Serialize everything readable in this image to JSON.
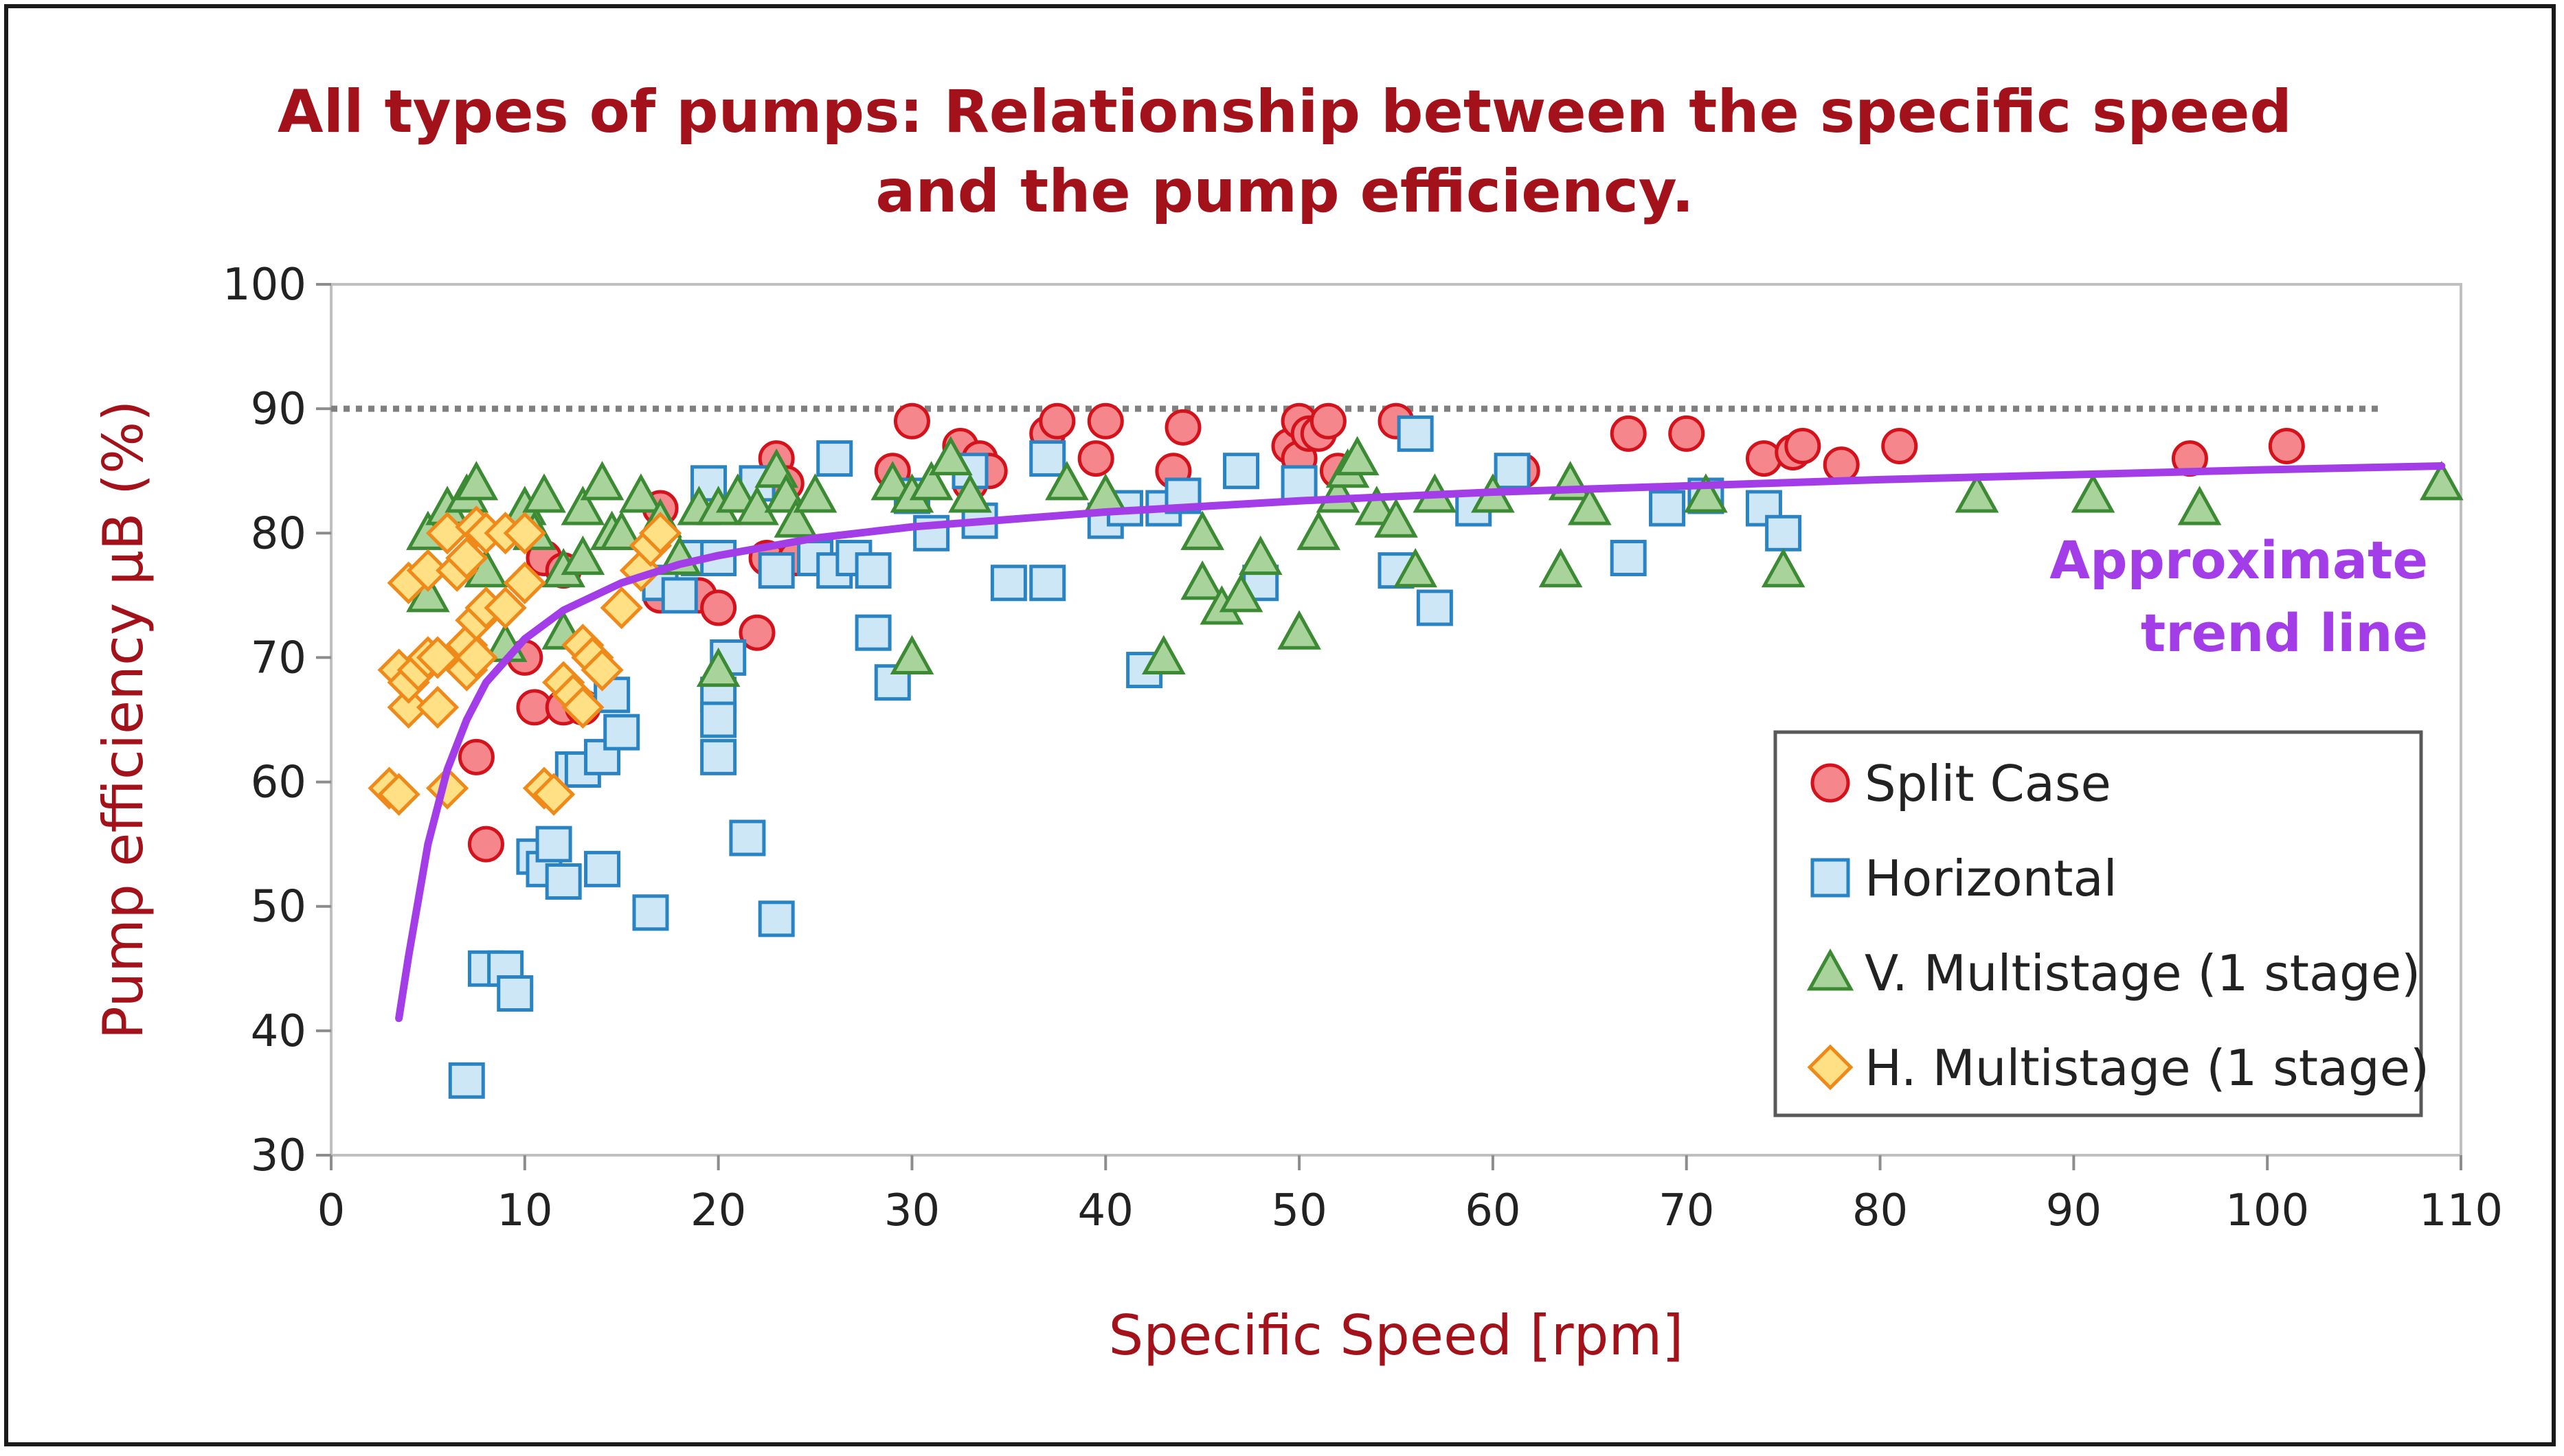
{
  "chart_data": {
    "type": "scatter",
    "title_lines": [
      "All types of pumps: Relationship between the specific speed",
      "and the pump efficiency."
    ],
    "xlabel": "Specific Speed [rpm]",
    "ylabel": "Pump efficiency µB (%)",
    "xlim": [
      0,
      110
    ],
    "ylim": [
      30,
      100
    ],
    "xticks": [
      "0",
      "10",
      "20",
      "30",
      "40",
      "50",
      "60",
      "70",
      "80",
      "90",
      "100",
      "110"
    ],
    "yticks": [
      "30",
      "40",
      "50",
      "60",
      "70",
      "80",
      "90",
      "100"
    ],
    "grid": false,
    "legend_position": "bottom-right",
    "reference_line": {
      "y": 90,
      "style": "dotted",
      "color": "#808080"
    },
    "annotation": {
      "lines": [
        "Approximate",
        "trend line"
      ],
      "color": "#a23de8"
    },
    "trend_line": {
      "color": "#a23de8",
      "points": [
        [
          3.5,
          41
        ],
        [
          4,
          46
        ],
        [
          5,
          55
        ],
        [
          6,
          61
        ],
        [
          7,
          65
        ],
        [
          8,
          68
        ],
        [
          10,
          71.5
        ],
        [
          12,
          73.8
        ],
        [
          15,
          76
        ],
        [
          18,
          77.5
        ],
        [
          20,
          78.2
        ],
        [
          25,
          79.6
        ],
        [
          30,
          80.5
        ],
        [
          35,
          81.1
        ],
        [
          40,
          81.7
        ],
        [
          50,
          82.6
        ],
        [
          60,
          83.3
        ],
        [
          70,
          83.8
        ],
        [
          80,
          84.3
        ],
        [
          90,
          84.7
        ],
        [
          100,
          85.1
        ],
        [
          109,
          85.4
        ]
      ]
    },
    "series": [
      {
        "name": "Split Case",
        "marker": "circle",
        "fill": "#f4868c",
        "stroke": "#d4121c",
        "points": [
          [
            7.5,
            62
          ],
          [
            8,
            55
          ],
          [
            10,
            70
          ],
          [
            11,
            78
          ],
          [
            12,
            77
          ],
          [
            10.5,
            66
          ],
          [
            12,
            66
          ],
          [
            13,
            66
          ],
          [
            17,
            82
          ],
          [
            17,
            75
          ],
          [
            19,
            75
          ],
          [
            20,
            74
          ],
          [
            22,
            72
          ],
          [
            22.5,
            78
          ],
          [
            23,
            86
          ],
          [
            23.5,
            84
          ],
          [
            24,
            78
          ],
          [
            29,
            85
          ],
          [
            30,
            89
          ],
          [
            32.5,
            87
          ],
          [
            33,
            84
          ],
          [
            33.5,
            86
          ],
          [
            34,
            85
          ],
          [
            37,
            88
          ],
          [
            37.5,
            89
          ],
          [
            39.5,
            86
          ],
          [
            40,
            89
          ],
          [
            43.5,
            85
          ],
          [
            44,
            88.5
          ],
          [
            49.5,
            87
          ],
          [
            50,
            86
          ],
          [
            50,
            89
          ],
          [
            50.5,
            88
          ],
          [
            51,
            88
          ],
          [
            51.5,
            89
          ],
          [
            52,
            85
          ],
          [
            55,
            89
          ],
          [
            61.5,
            85
          ],
          [
            67,
            88
          ],
          [
            70,
            88
          ],
          [
            74,
            86
          ],
          [
            75.5,
            86.5
          ],
          [
            76,
            87
          ],
          [
            78,
            85.5
          ],
          [
            81,
            87
          ],
          [
            96,
            86
          ],
          [
            101,
            87
          ]
        ]
      },
      {
        "name": "Horizontal",
        "marker": "square",
        "fill": "#cde7f7",
        "stroke": "#2a83c2",
        "points": [
          [
            7,
            36
          ],
          [
            8,
            45
          ],
          [
            9,
            45
          ],
          [
            9.5,
            43
          ],
          [
            10.5,
            54
          ],
          [
            11,
            53
          ],
          [
            11.5,
            55
          ],
          [
            12,
            52
          ],
          [
            12.5,
            61
          ],
          [
            13,
            61
          ],
          [
            14,
            53
          ],
          [
            14,
            62
          ],
          [
            14.5,
            67
          ],
          [
            15,
            64
          ],
          [
            16.5,
            49.5
          ],
          [
            17,
            76
          ],
          [
            18,
            75
          ],
          [
            19,
            78
          ],
          [
            19.5,
            84
          ],
          [
            20,
            78
          ],
          [
            20,
            62
          ],
          [
            20,
            67
          ],
          [
            20,
            65
          ],
          [
            20.5,
            70
          ],
          [
            21.5,
            55.5
          ],
          [
            22,
            84
          ],
          [
            23,
            77
          ],
          [
            23,
            49
          ],
          [
            25,
            78
          ],
          [
            26,
            77
          ],
          [
            26,
            86
          ],
          [
            27,
            78
          ],
          [
            28,
            77
          ],
          [
            28,
            72
          ],
          [
            29,
            68
          ],
          [
            30,
            83
          ],
          [
            31,
            80
          ],
          [
            33,
            85
          ],
          [
            33.5,
            81
          ],
          [
            35,
            76
          ],
          [
            37,
            76
          ],
          [
            37,
            86
          ],
          [
            40,
            81
          ],
          [
            41,
            82
          ],
          [
            42,
            69
          ],
          [
            43,
            82
          ],
          [
            44,
            83
          ],
          [
            47,
            85
          ],
          [
            48,
            76
          ],
          [
            50,
            84
          ],
          [
            55,
            77
          ],
          [
            56,
            88
          ],
          [
            57,
            74
          ],
          [
            59,
            82
          ],
          [
            61,
            85
          ],
          [
            67,
            78
          ],
          [
            69,
            82
          ],
          [
            71,
            83
          ],
          [
            74,
            82
          ],
          [
            75,
            80
          ]
        ]
      },
      {
        "name": "V. Multistage (1 stage)",
        "marker": "triangle",
        "fill": "#a8d39a",
        "stroke": "#3c8a34",
        "points": [
          [
            5,
            75
          ],
          [
            5,
            80
          ],
          [
            6,
            82
          ],
          [
            7,
            83
          ],
          [
            7.5,
            84
          ],
          [
            8,
            77
          ],
          [
            9,
            71
          ],
          [
            10,
            82
          ],
          [
            10.5,
            80
          ],
          [
            11,
            83
          ],
          [
            12,
            72
          ],
          [
            12,
            77
          ],
          [
            13,
            78
          ],
          [
            13,
            82
          ],
          [
            14,
            84
          ],
          [
            14.5,
            80
          ],
          [
            15,
            80
          ],
          [
            16,
            83
          ],
          [
            17,
            81
          ],
          [
            18,
            78
          ],
          [
            19,
            82
          ],
          [
            20,
            69
          ],
          [
            20,
            82
          ],
          [
            21,
            83
          ],
          [
            22,
            82
          ],
          [
            23,
            85
          ],
          [
            23.5,
            83
          ],
          [
            24,
            81
          ],
          [
            25,
            83
          ],
          [
            29,
            84
          ],
          [
            30,
            70
          ],
          [
            30,
            83
          ],
          [
            31,
            84
          ],
          [
            32,
            86
          ],
          [
            33,
            83
          ],
          [
            38,
            84
          ],
          [
            40,
            83
          ],
          [
            43,
            70
          ],
          [
            45,
            76
          ],
          [
            45,
            80
          ],
          [
            46,
            74
          ],
          [
            47,
            75
          ],
          [
            48,
            78
          ],
          [
            50,
            72
          ],
          [
            51,
            80
          ],
          [
            52,
            83
          ],
          [
            52.5,
            85
          ],
          [
            53,
            86
          ],
          [
            54,
            82
          ],
          [
            55,
            81
          ],
          [
            56,
            77
          ],
          [
            57,
            83
          ],
          [
            60,
            83
          ],
          [
            63.5,
            77
          ],
          [
            64,
            84
          ],
          [
            65,
            82
          ],
          [
            71,
            83
          ],
          [
            75,
            77
          ],
          [
            85,
            83
          ],
          [
            91,
            83
          ],
          [
            96.5,
            82
          ],
          [
            109,
            84
          ]
        ]
      },
      {
        "name": "H. Multistage (1 stage)",
        "marker": "diamond",
        "fill": "#ffe084",
        "stroke": "#ef8a1a",
        "points": [
          [
            3,
            59.5
          ],
          [
            3.5,
            59
          ],
          [
            3.5,
            69
          ],
          [
            4,
            66
          ],
          [
            4,
            68
          ],
          [
            4,
            76
          ],
          [
            4.5,
            69
          ],
          [
            5,
            70
          ],
          [
            5,
            77
          ],
          [
            5.5,
            66
          ],
          [
            5.5,
            70
          ],
          [
            6,
            59.5
          ],
          [
            6,
            80
          ],
          [
            6.5,
            77
          ],
          [
            7,
            69
          ],
          [
            7,
            71
          ],
          [
            7,
            78
          ],
          [
            7.5,
            70
          ],
          [
            7.5,
            73
          ],
          [
            7.5,
            80.5
          ],
          [
            8,
            74
          ],
          [
            8,
            80
          ],
          [
            9,
            74
          ],
          [
            9,
            80
          ],
          [
            10,
            76
          ],
          [
            10,
            80
          ],
          [
            11,
            59.5
          ],
          [
            11.5,
            59
          ],
          [
            12,
            68
          ],
          [
            12.5,
            67
          ],
          [
            13,
            66
          ],
          [
            13,
            71
          ],
          [
            13.5,
            70
          ],
          [
            14,
            69
          ],
          [
            15,
            74
          ],
          [
            16,
            77
          ],
          [
            16.5,
            79
          ],
          [
            17,
            80
          ]
        ]
      }
    ]
  }
}
